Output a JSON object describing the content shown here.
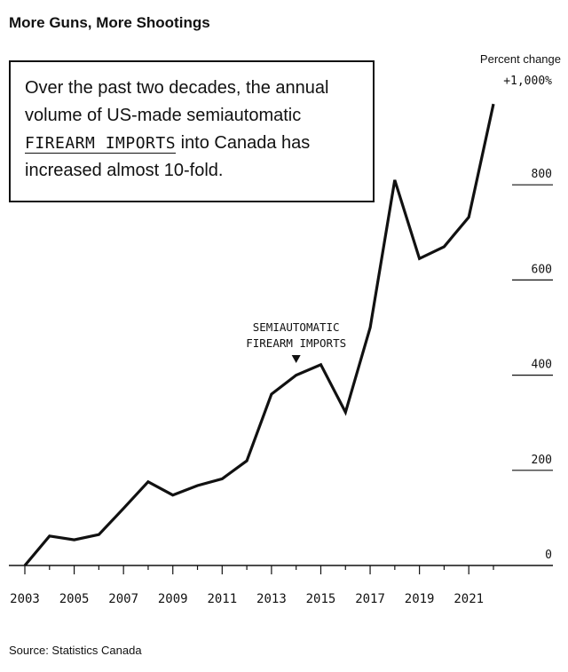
{
  "title": "More Guns, More Shootings",
  "callout": {
    "text_before": "Over the past two decades, the annual volume of US-made semiautomatic ",
    "highlight": "FIREARM IMPORTS",
    "text_after": " into Canada has increased almost 10-fold."
  },
  "source": "Source: Statistics Canada",
  "chart_data": {
    "type": "line",
    "ylabel": "Percent change",
    "ylim": [
      0,
      1000
    ],
    "yticks": [
      {
        "value": 0,
        "label": "0"
      },
      {
        "value": 200,
        "label": "200"
      },
      {
        "value": 400,
        "label": "400"
      },
      {
        "value": 600,
        "label": "600"
      },
      {
        "value": 800,
        "label": "800"
      },
      {
        "value": 1000,
        "label": "+1,000%"
      }
    ],
    "xlim": [
      2003,
      2022
    ],
    "xticks": [
      2003,
      2005,
      2007,
      2009,
      2011,
      2013,
      2015,
      2017,
      2019,
      2021
    ],
    "series": [
      {
        "name": "SEMIAUTOMATIC FIREARM IMPORTS",
        "x": [
          2003,
          2004,
          2005,
          2006,
          2007,
          2008,
          2009,
          2010,
          2011,
          2012,
          2013,
          2014,
          2015,
          2016,
          2017,
          2018,
          2019,
          2020,
          2021,
          2022
        ],
        "y": [
          0,
          62,
          54,
          65,
          120,
          176,
          148,
          168,
          182,
          220,
          360,
          400,
          422,
          322,
          500,
          810,
          645,
          670,
          732,
          970
        ]
      }
    ],
    "annotation": {
      "line1": "SEMIAUTOMATIC",
      "line2": "FIREARM IMPORTS",
      "x": 2014
    },
    "line_color": "#111111"
  }
}
